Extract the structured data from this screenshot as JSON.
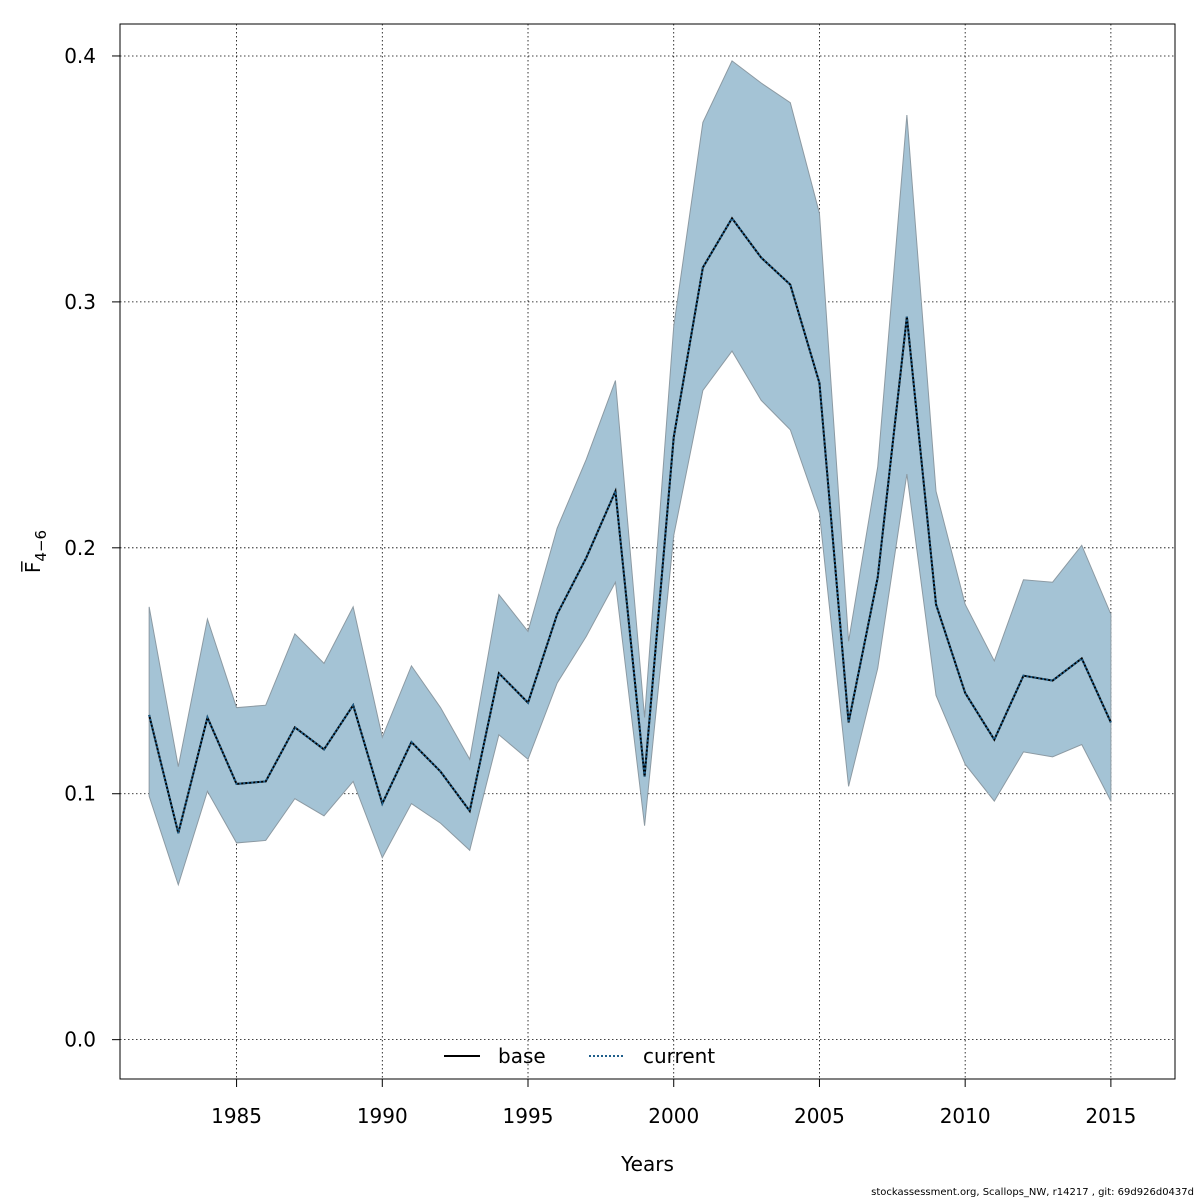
{
  "chart_data": {
    "type": "area",
    "title": "",
    "xlabel": "Years",
    "ylabel": "F̅",
    "ylabel_subscript": "4−6",
    "xlim": [
      1981.0,
      2017.2
    ],
    "ylim": [
      -0.016,
      0.413
    ],
    "xticks": [
      1985,
      1990,
      1995,
      2000,
      2005,
      2010,
      2015
    ],
    "yticks": [
      0.0,
      0.1,
      0.2,
      0.3,
      0.4
    ],
    "ytick_labels": [
      "0.0",
      "0.1",
      "0.2",
      "0.3",
      "0.4"
    ],
    "grid": true,
    "legend_position": "bottom-center",
    "band_color": "#a4c3d5",
    "band_edge_color": "#8c9aa3",
    "x": [
      1982,
      1983,
      1984,
      1985,
      1986,
      1987,
      1988,
      1989,
      1990,
      1991,
      1992,
      1993,
      1994,
      1995,
      1996,
      1997,
      1998,
      1999,
      2000,
      2001,
      2002,
      2003,
      2004,
      2005,
      2006,
      2007,
      2008,
      2009,
      2010,
      2011,
      2012,
      2013,
      2014,
      2015
    ],
    "series": [
      {
        "name": "base",
        "style": "solid",
        "color": "#000000",
        "values": [
          0.132,
          0.084,
          0.131,
          0.104,
          0.105,
          0.127,
          0.118,
          0.136,
          0.096,
          0.121,
          0.109,
          0.093,
          0.149,
          0.137,
          0.173,
          0.196,
          0.223,
          0.107,
          0.245,
          0.314,
          0.334,
          0.318,
          0.307,
          0.267,
          0.129,
          0.188,
          0.294,
          0.177,
          0.141,
          0.122,
          0.148,
          0.146,
          0.155,
          0.129
        ]
      },
      {
        "name": "current",
        "style": "dotted",
        "color": "#1f5f8b",
        "values": [
          0.132,
          0.084,
          0.131,
          0.104,
          0.105,
          0.127,
          0.118,
          0.136,
          0.096,
          0.121,
          0.109,
          0.093,
          0.149,
          0.137,
          0.173,
          0.196,
          0.223,
          0.107,
          0.245,
          0.314,
          0.334,
          0.318,
          0.307,
          0.267,
          0.129,
          0.188,
          0.294,
          0.177,
          0.141,
          0.122,
          0.148,
          0.146,
          0.155,
          0.129
        ]
      }
    ],
    "band": {
      "upper": [
        0.176,
        0.111,
        0.171,
        0.135,
        0.136,
        0.165,
        0.153,
        0.176,
        0.123,
        0.152,
        0.135,
        0.114,
        0.181,
        0.166,
        0.208,
        0.236,
        0.268,
        0.131,
        0.29,
        0.373,
        0.398,
        0.389,
        0.381,
        0.336,
        0.162,
        0.233,
        0.376,
        0.223,
        0.177,
        0.154,
        0.187,
        0.186,
        0.201,
        0.173
      ],
      "lower": [
        0.099,
        0.063,
        0.101,
        0.08,
        0.081,
        0.098,
        0.091,
        0.105,
        0.074,
        0.096,
        0.088,
        0.077,
        0.124,
        0.114,
        0.145,
        0.164,
        0.186,
        0.087,
        0.205,
        0.264,
        0.28,
        0.26,
        0.248,
        0.214,
        0.103,
        0.151,
        0.23,
        0.14,
        0.112,
        0.097,
        0.117,
        0.115,
        0.12,
        0.097
      ]
    }
  },
  "footer": "stockassessment.org, Scallops_NW, r14217 , git: 69d926d0437d"
}
